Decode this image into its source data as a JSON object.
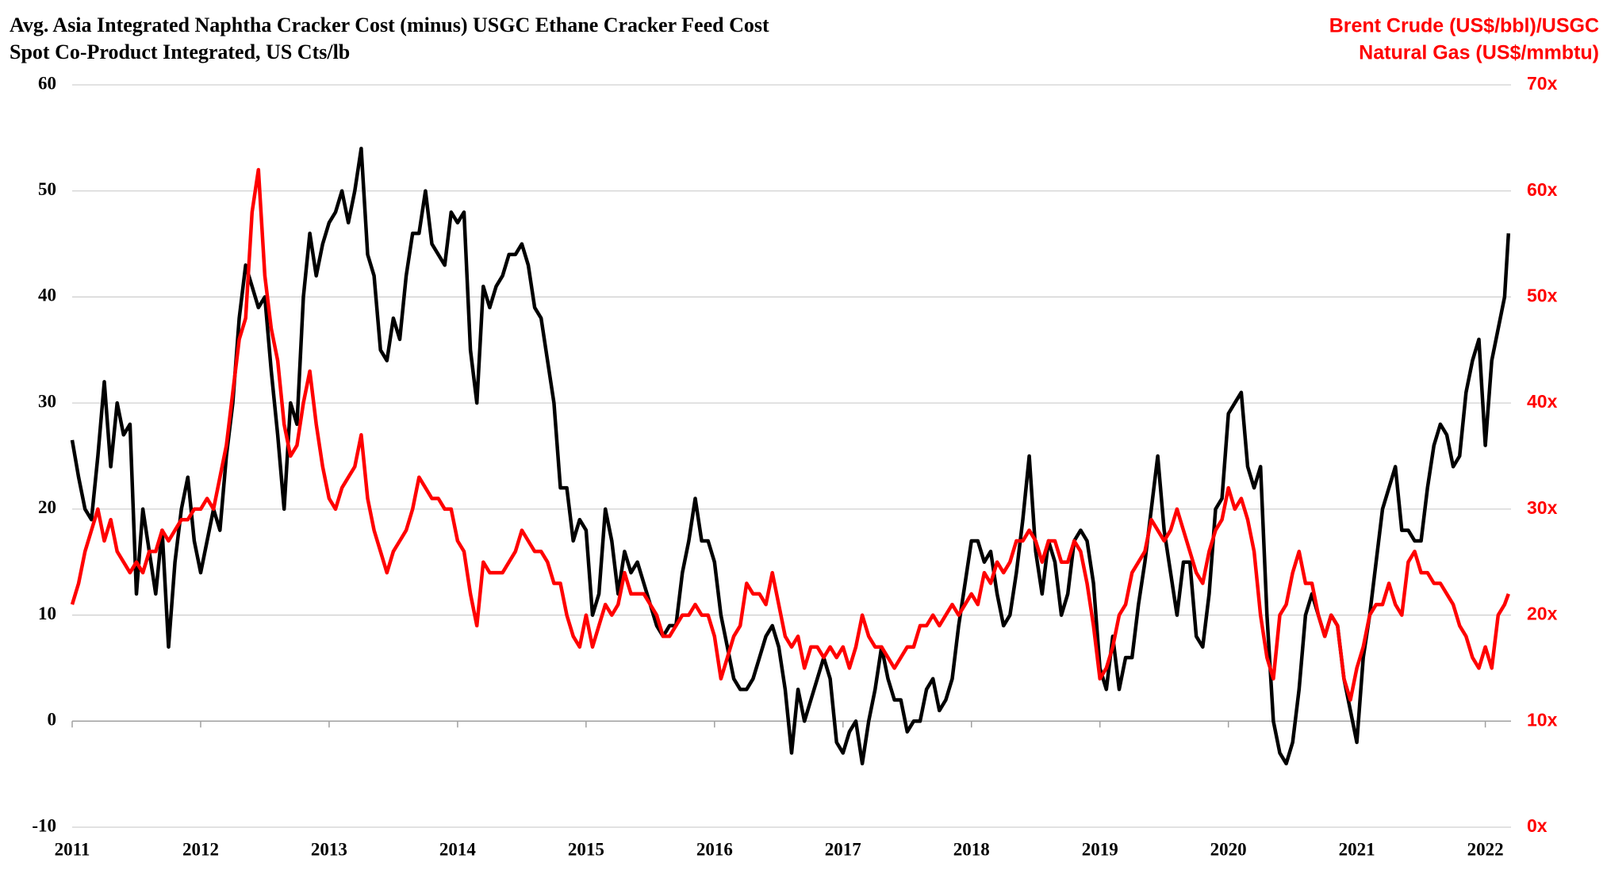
{
  "chart_data": {
    "type": "line",
    "ylabel_lines": [
      "Avg. Asia Integrated Naphtha Cracker Cost (minus) USGC Ethane Cracker Feed Cost",
      "Spot Co-Product Integrated, US Cts/lb"
    ],
    "y2label_lines": [
      "Brent Crude (US$/bbl)/USGC",
      "Natural Gas (US$/mmbtu)"
    ],
    "xlim": [
      2011,
      2022.2
    ],
    "xticks": [
      2011,
      2012,
      2013,
      2014,
      2015,
      2016,
      2017,
      2018,
      2019,
      2020,
      2021,
      2022
    ],
    "ylim": [
      -10,
      60
    ],
    "yticks": [
      -10,
      0,
      10,
      20,
      30,
      40,
      50,
      60
    ],
    "y2lim": [
      0,
      70
    ],
    "y2ticks": [
      {
        "value": 0,
        "label": "0x"
      },
      {
        "value": 10,
        "label": "10x"
      },
      {
        "value": 20,
        "label": "20x"
      },
      {
        "value": 30,
        "label": "30x"
      },
      {
        "value": 40,
        "label": "40x"
      },
      {
        "value": 50,
        "label": "50x"
      },
      {
        "value": 60,
        "label": "60x"
      },
      {
        "value": 70,
        "label": "70x"
      }
    ],
    "grid": true,
    "x": [
      2011.0,
      2011.05,
      2011.1,
      2011.15,
      2011.2,
      2011.25,
      2011.3,
      2011.35,
      2011.4,
      2011.45,
      2011.5,
      2011.55,
      2011.6,
      2011.65,
      2011.7,
      2011.75,
      2011.8,
      2011.85,
      2011.9,
      2011.95,
      2012.0,
      2012.05,
      2012.1,
      2012.15,
      2012.2,
      2012.25,
      2012.3,
      2012.35,
      2012.4,
      2012.45,
      2012.5,
      2012.55,
      2012.6,
      2012.65,
      2012.7,
      2012.75,
      2012.8,
      2012.85,
      2012.9,
      2012.95,
      2013.0,
      2013.05,
      2013.1,
      2013.15,
      2013.2,
      2013.25,
      2013.3,
      2013.35,
      2013.4,
      2013.45,
      2013.5,
      2013.55,
      2013.6,
      2013.65,
      2013.7,
      2013.75,
      2013.8,
      2013.85,
      2013.9,
      2013.95,
      2014.0,
      2014.05,
      2014.1,
      2014.15,
      2014.2,
      2014.25,
      2014.3,
      2014.35,
      2014.4,
      2014.45,
      2014.5,
      2014.55,
      2014.6,
      2014.65,
      2014.7,
      2014.75,
      2014.8,
      2014.85,
      2014.9,
      2014.95,
      2015.0,
      2015.05,
      2015.1,
      2015.15,
      2015.2,
      2015.25,
      2015.3,
      2015.35,
      2015.4,
      2015.45,
      2015.5,
      2015.55,
      2015.6,
      2015.65,
      2015.7,
      2015.75,
      2015.8,
      2015.85,
      2015.9,
      2015.95,
      2016.0,
      2016.05,
      2016.1,
      2016.15,
      2016.2,
      2016.25,
      2016.3,
      2016.35,
      2016.4,
      2016.45,
      2016.5,
      2016.55,
      2016.6,
      2016.65,
      2016.7,
      2016.75,
      2016.8,
      2016.85,
      2016.9,
      2016.95,
      2017.0,
      2017.05,
      2017.1,
      2017.15,
      2017.2,
      2017.25,
      2017.3,
      2017.35,
      2017.4,
      2017.45,
      2017.5,
      2017.55,
      2017.6,
      2017.65,
      2017.7,
      2017.75,
      2017.8,
      2017.85,
      2017.9,
      2017.95,
      2018.0,
      2018.05,
      2018.1,
      2018.15,
      2018.2,
      2018.25,
      2018.3,
      2018.35,
      2018.4,
      2018.45,
      2018.5,
      2018.55,
      2018.6,
      2018.65,
      2018.7,
      2018.75,
      2018.8,
      2018.85,
      2018.9,
      2018.95,
      2019.0,
      2019.05,
      2019.1,
      2019.15,
      2019.2,
      2019.25,
      2019.3,
      2019.35,
      2019.4,
      2019.45,
      2019.5,
      2019.55,
      2019.6,
      2019.65,
      2019.7,
      2019.75,
      2019.8,
      2019.85,
      2019.9,
      2019.95,
      2020.0,
      2020.05,
      2020.1,
      2020.15,
      2020.2,
      2020.25,
      2020.3,
      2020.35,
      2020.4,
      2020.45,
      2020.5,
      2020.55,
      2020.6,
      2020.65,
      2020.7,
      2020.75,
      2020.8,
      2020.85,
      2020.9,
      2020.95,
      2021.0,
      2021.05,
      2021.1,
      2021.15,
      2021.2,
      2021.25,
      2021.3,
      2021.35,
      2021.4,
      2021.45,
      2021.5,
      2021.55,
      2021.6,
      2021.65,
      2021.7,
      2021.75,
      2021.8,
      2021.85,
      2021.9,
      2021.95,
      2022.0,
      2022.05,
      2022.1,
      2022.15,
      2022.18
    ],
    "series": [
      {
        "color": "#000000",
        "axis": "y",
        "values": [
          26.5,
          23,
          20,
          19,
          25,
          32,
          24,
          30,
          27,
          28,
          12,
          20,
          16,
          12,
          18,
          7,
          15,
          20,
          23,
          17,
          14,
          17,
          20,
          18,
          25,
          30,
          38,
          43,
          41,
          39,
          40,
          33,
          27,
          20,
          30,
          28,
          40,
          46,
          42,
          45,
          47,
          48,
          50,
          47,
          50,
          54,
          44,
          42,
          35,
          34,
          38,
          36,
          42,
          46,
          46,
          50,
          45,
          44,
          43,
          48,
          47,
          48,
          35,
          30,
          41,
          39,
          41,
          42,
          44,
          44,
          45,
          43,
          39,
          38,
          34,
          30,
          22,
          22,
          17,
          19,
          18,
          10,
          12,
          20,
          17,
          12,
          16,
          14,
          15,
          13,
          11,
          9,
          8,
          9,
          9,
          14,
          17,
          21,
          17,
          17,
          15,
          10,
          7,
          4,
          3,
          3,
          4,
          6,
          8,
          9,
          7,
          3,
          -3,
          3,
          0,
          2,
          4,
          6,
          4,
          -2,
          -3,
          -1,
          0,
          -4,
          0,
          3,
          7,
          4,
          2,
          2,
          -1,
          0,
          0,
          3,
          4,
          1,
          2,
          4,
          9,
          13,
          17,
          17,
          15,
          16,
          12,
          9,
          10,
          14,
          19,
          25,
          16,
          12,
          17,
          15,
          10,
          12,
          17,
          18,
          17,
          13,
          5,
          3,
          8,
          3,
          6,
          6,
          11,
          15,
          20,
          25,
          18,
          14,
          10,
          15,
          15,
          8,
          7,
          12,
          20,
          21,
          29,
          30,
          31,
          24,
          22,
          24,
          10,
          0,
          -3,
          -4,
          -2,
          3,
          10,
          12,
          10,
          8,
          10,
          9,
          4,
          1,
          -2,
          6,
          10,
          15,
          20,
          22,
          24,
          18,
          18,
          17,
          17,
          22,
          26,
          28,
          27,
          24,
          25,
          31,
          34,
          36,
          26,
          34,
          37,
          40,
          46
        ]
      },
      {
        "color": "#ff0000",
        "axis": "y2",
        "values": [
          21,
          23,
          26,
          28,
          30,
          27,
          29,
          26,
          25,
          24,
          25,
          24,
          26,
          26,
          28,
          27,
          28,
          29,
          29,
          30,
          30,
          31,
          30,
          33,
          36,
          41,
          46,
          48,
          58,
          62,
          52,
          47,
          44,
          38,
          35,
          36,
          40,
          43,
          38,
          34,
          31,
          30,
          32,
          33,
          34,
          37,
          31,
          28,
          26,
          24,
          26,
          27,
          28,
          30,
          33,
          32,
          31,
          31,
          30,
          30,
          27,
          26,
          22,
          19,
          25,
          24,
          24,
          24,
          25,
          26,
          28,
          27,
          26,
          26,
          25,
          23,
          23,
          20,
          18,
          17,
          20,
          17,
          19,
          21,
          20,
          21,
          24,
          22,
          22,
          22,
          21,
          20,
          18,
          18,
          19,
          20,
          20,
          21,
          20,
          20,
          18,
          14,
          16,
          18,
          19,
          23,
          22,
          22,
          21,
          24,
          21,
          18,
          17,
          18,
          15,
          17,
          17,
          16,
          17,
          16,
          17,
          15,
          17,
          20,
          18,
          17,
          17,
          16,
          15,
          16,
          17,
          17,
          19,
          19,
          20,
          19,
          20,
          21,
          20,
          21,
          22,
          21,
          24,
          23,
          25,
          24,
          25,
          27,
          27,
          28,
          27,
          25,
          27,
          27,
          25,
          25,
          27,
          26,
          23,
          19,
          14,
          15,
          17,
          20,
          21,
          24,
          25,
          26,
          29,
          28,
          27,
          28,
          30,
          28,
          26,
          24,
          23,
          26,
          28,
          29,
          32,
          30,
          31,
          29,
          26,
          20,
          16,
          14,
          20,
          21,
          24,
          26,
          23,
          23,
          20,
          18,
          20,
          19,
          14,
          12,
          15,
          17,
          20,
          21,
          21,
          23,
          21,
          20,
          25,
          26,
          24,
          24,
          23,
          23,
          22,
          21,
          19,
          18,
          16,
          15,
          17,
          15,
          20,
          21,
          22
        ]
      }
    ]
  }
}
